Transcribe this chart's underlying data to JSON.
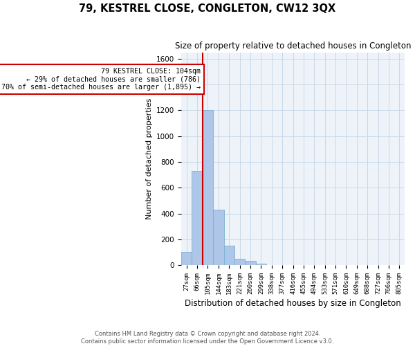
{
  "title": "79, KESTREL CLOSE, CONGLETON, CW12 3QX",
  "subtitle": "Size of property relative to detached houses in Congleton",
  "xlabel": "Distribution of detached houses by size in Congleton",
  "ylabel": "Number of detached properties",
  "bar_color": "#aec6e8",
  "bar_edge_color": "#7aafd4",
  "grid_color": "#c8d8e8",
  "background_color": "#eef3f9",
  "annotation_box_color": "#cc0000",
  "annotation_line_color": "#cc0000",
  "annotation_text_line1": "79 KESTREL CLOSE: 104sqm",
  "annotation_text_line2": "← 29% of detached houses are smaller (786)",
  "annotation_text_line3": "70% of semi-detached houses are larger (1,895) →",
  "bin_labels": [
    "27sqm",
    "66sqm",
    "105sqm",
    "144sqm",
    "183sqm",
    "221sqm",
    "260sqm",
    "299sqm",
    "338sqm",
    "377sqm",
    "416sqm",
    "455sqm",
    "494sqm",
    "533sqm",
    "571sqm",
    "610sqm",
    "649sqm",
    "688sqm",
    "727sqm",
    "766sqm",
    "805sqm"
  ],
  "bar_values": [
    100,
    730,
    1200,
    430,
    150,
    50,
    30,
    10,
    0,
    0,
    0,
    0,
    0,
    0,
    0,
    0,
    0,
    0,
    0,
    0,
    0
  ],
  "ylim": [
    0,
    1650
  ],
  "yticks": [
    0,
    200,
    400,
    600,
    800,
    1000,
    1200,
    1400,
    1600
  ],
  "red_line_bin_index": 2,
  "footer_line1": "Contains HM Land Registry data © Crown copyright and database right 2024.",
  "footer_line2": "Contains public sector information licensed under the Open Government Licence v3.0."
}
